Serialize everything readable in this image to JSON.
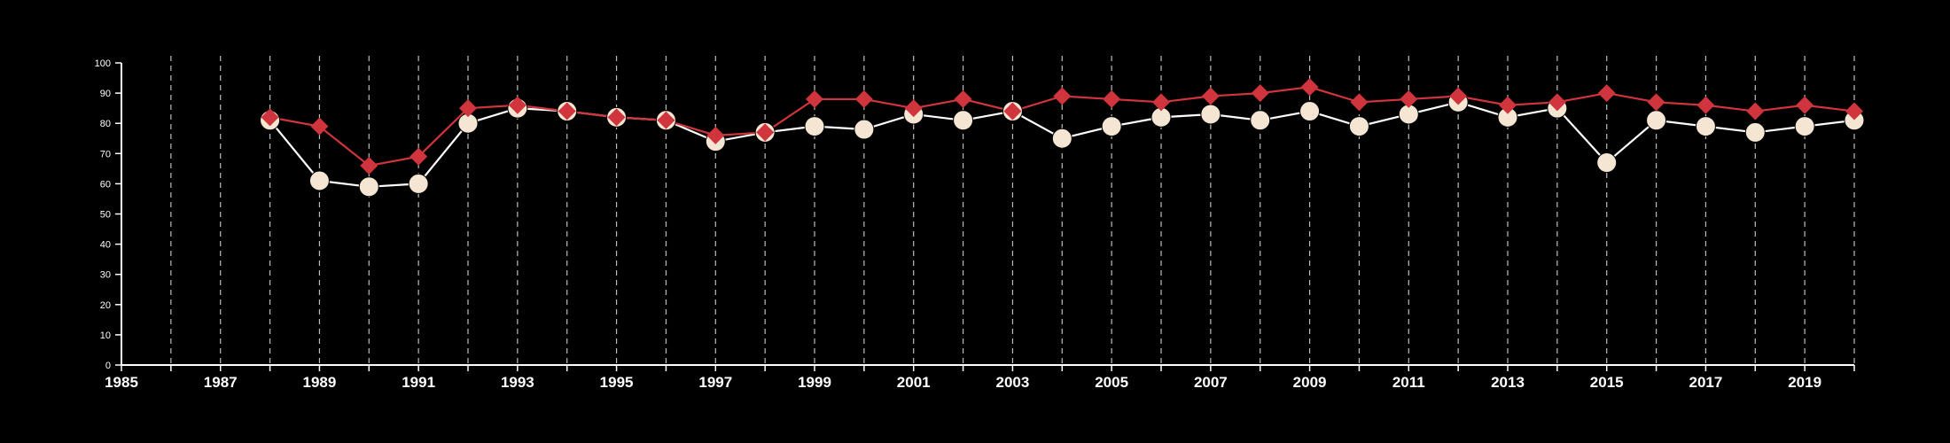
{
  "chart_data": {
    "type": "line",
    "title": "",
    "xlabel": "",
    "ylabel": "",
    "xlim": [
      1985,
      2020
    ],
    "ylim": [
      0,
      100
    ],
    "grid": {
      "vertical_dashed": true,
      "horizontal": false
    },
    "x_tick_labels": [
      "1985",
      "1987",
      "1989",
      "1991",
      "1993",
      "1995",
      "1997",
      "1999",
      "2001",
      "2003",
      "2005",
      "2007",
      "2009",
      "2011",
      "2013",
      "2015",
      "2017",
      "2019"
    ],
    "y_tick_labels": [
      "0",
      "10",
      "20",
      "30",
      "40",
      "50",
      "60",
      "70",
      "80",
      "90",
      "100"
    ],
    "x": [
      1988,
      1989,
      1990,
      1991,
      1992,
      1993,
      1994,
      1995,
      1996,
      1997,
      1998,
      1999,
      2000,
      2001,
      2002,
      2003,
      2004,
      2005,
      2006,
      2007,
      2008,
      2009,
      2010,
      2011,
      2012,
      2013,
      2014,
      2015,
      2016,
      2017,
      2018,
      2019,
      2020
    ],
    "series": [
      {
        "marker": "diamond",
        "color": "#d0343c",
        "values": [
          82,
          79,
          66,
          69,
          85,
          86,
          84,
          82,
          81,
          76,
          77,
          88,
          88,
          85,
          88,
          84,
          89,
          88,
          87,
          89,
          90,
          92,
          87,
          88,
          89,
          86,
          87,
          90,
          87,
          86,
          84,
          86,
          84
        ]
      },
      {
        "marker": "circle",
        "color": "#f5e6d3",
        "line_color": "#ffffff",
        "values": [
          81,
          61,
          59,
          60,
          80,
          85,
          84,
          82,
          81,
          74,
          77,
          79,
          78,
          83,
          81,
          84,
          75,
          79,
          82,
          83,
          81,
          84,
          79,
          83,
          87,
          82,
          85,
          67,
          81,
          79,
          77,
          79,
          81
        ]
      }
    ]
  }
}
